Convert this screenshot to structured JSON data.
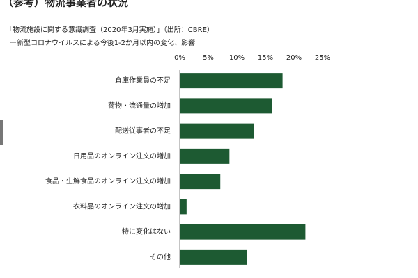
{
  "chart_data": {
    "type": "hbar",
    "title": "（参考）物流事業者の状況",
    "subtitle": [
      "「物流施設に関する意識調査（2020年3月実施）」（出所：CBRE）",
      "ー新型コロナウイルスによる今後1-2か月以内の変化、影響"
    ],
    "categories": [
      "倉庫作業員の不足",
      "荷物・流通量の増加",
      "配送従事者の不足",
      "日用品のオンライン注文の増加",
      "食品・生鮮食品のオンライン注文の増加",
      "衣料品のオンライン注文の増加",
      "特に変化はない",
      "その他"
    ],
    "values": [
      18.0,
      16.2,
      13.0,
      8.7,
      7.1,
      1.2,
      22.0,
      11.8
    ],
    "color": "#1d5a32",
    "xlim": [
      0,
      25
    ],
    "xticks": [
      {
        "value": 0,
        "label": "0%"
      },
      {
        "value": 5,
        "label": "5%"
      },
      {
        "value": 10,
        "label": "10%"
      },
      {
        "value": 15,
        "label": "15%"
      },
      {
        "value": 20,
        "label": "20%"
      },
      {
        "value": 25,
        "label": "25%"
      }
    ]
  }
}
